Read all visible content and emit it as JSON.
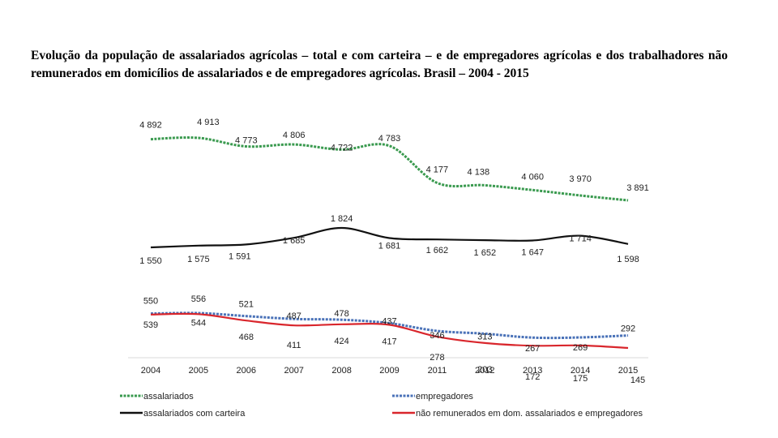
{
  "chart_data": {
    "type": "line",
    "title": "Evolução da população de assalariados agrícolas – total e com carteira – e de empregadores agrícolas e dos trabalhadores não remunerados em domicílios de assalariados e de empregadores agrícolas. Brasil – 2004 - 2015",
    "xlabel": "",
    "ylabel": "",
    "categories": [
      "2004",
      "2005",
      "2006",
      "2007",
      "2008",
      "2009",
      "2011",
      "2012",
      "2013",
      "2014",
      "2015"
    ],
    "series": [
      {
        "name": "assalariados",
        "color": "#3a9a4f",
        "dash": "dotted",
        "values": [
          4892,
          4913,
          4773,
          4806,
          4722,
          4783,
          4177,
          4138,
          4060,
          3970,
          3891
        ],
        "labels": [
          "4 892",
          "4 913",
          "4 773",
          "4 806",
          "4 722",
          "4 783",
          "4 177",
          "4 138",
          "4 060",
          "3 970",
          "3 891"
        ]
      },
      {
        "name": "assalariados com carteira",
        "color": "#111111",
        "dash": "solid",
        "values": [
          1550,
          1575,
          1591,
          1685,
          1824,
          1681,
          1662,
          1652,
          1647,
          1714,
          1598
        ],
        "labels": [
          "1 550",
          "1 575",
          "1 591",
          "1 685",
          "1 824",
          "1 681",
          "1 662",
          "1 652",
          "1 647",
          "1 714",
          "1 598"
        ]
      },
      {
        "name": "empregadores",
        "color": "#4a72b8",
        "dash": "dotted",
        "values": [
          550,
          556,
          521,
          487,
          478,
          437,
          346,
          313,
          267,
          269,
          292
        ],
        "labels": [
          "550",
          "556",
          "521",
          "487",
          "478",
          "437",
          "346",
          "313",
          "267",
          "269",
          "292"
        ]
      },
      {
        "name": "não remunerados em dom. assalariados e empregadores",
        "color": "#d9262c",
        "dash": "solid",
        "values": [
          539,
          544,
          468,
          411,
          424,
          417,
          278,
          203,
          172,
          175,
          145
        ],
        "labels": [
          "539",
          "544",
          "468",
          "411",
          "424",
          "417",
          "278",
          "203",
          "172",
          "175",
          "145"
        ]
      }
    ]
  }
}
